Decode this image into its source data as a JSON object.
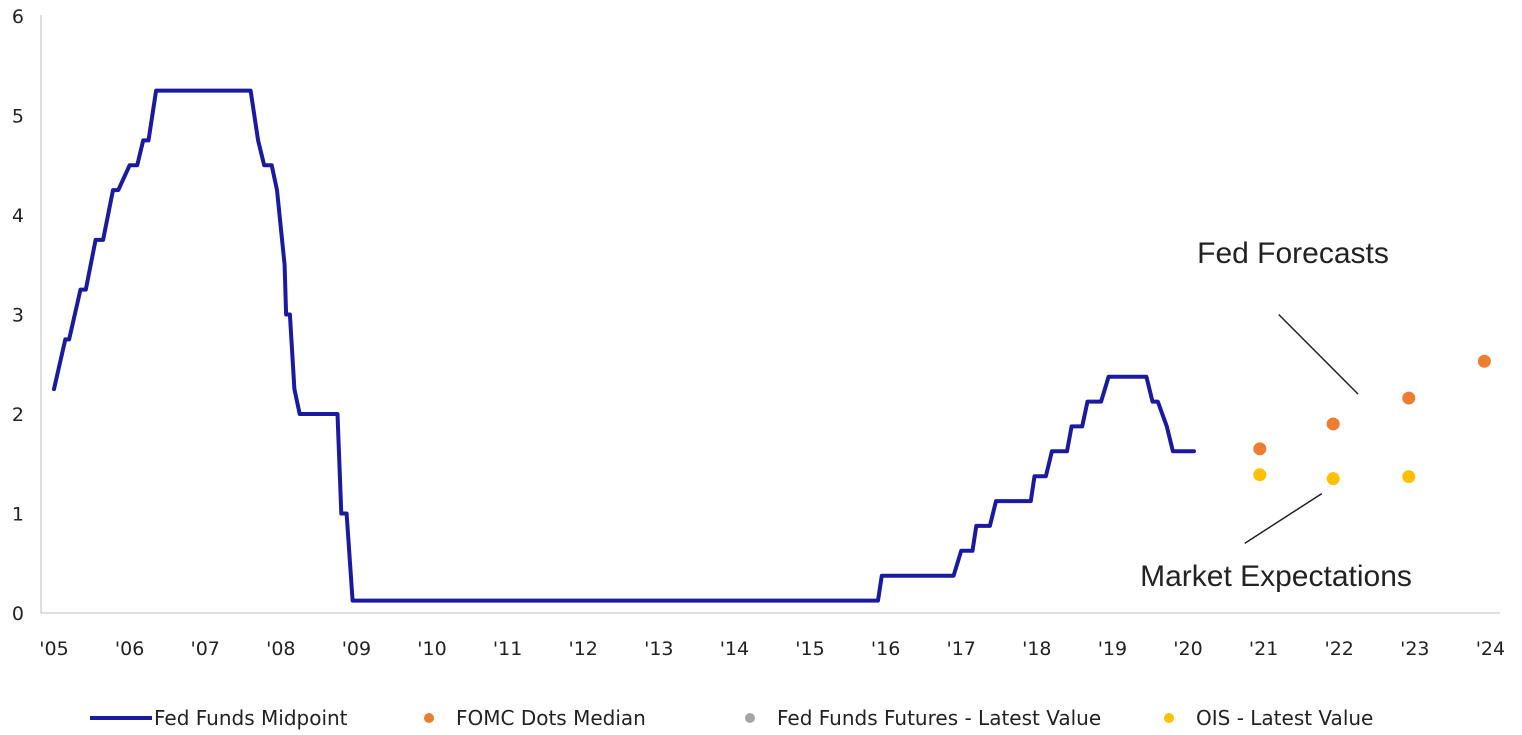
{
  "chart_data": {
    "type": "line",
    "title": "",
    "xlabel": "",
    "ylabel": "",
    "xlim": [
      2005.0,
      2024.0
    ],
    "ylim": [
      0,
      6
    ],
    "y_ticks": [
      0,
      1,
      2,
      3,
      4,
      5,
      6
    ],
    "x_ticks": [
      "'05",
      "'06",
      "'07",
      "'08",
      "'09",
      "'10",
      "'11",
      "'12",
      "'13",
      "'14",
      "'15",
      "'16",
      "'17",
      "'18",
      "'19",
      "'20",
      "'21",
      "'22",
      "'23",
      "'24"
    ],
    "grid": false,
    "legend_position": "bottom",
    "series": [
      {
        "name": "Fed Funds Midpoint",
        "kind": "line",
        "color": "#1a1aa0",
        "x": [
          2005.0,
          2005.15,
          2005.2,
          2005.35,
          2005.42,
          2005.55,
          2005.65,
          2005.78,
          2005.85,
          2006.0,
          2006.1,
          2006.18,
          2006.25,
          2006.35,
          2006.42,
          2006.55,
          2007.6,
          2007.7,
          2007.78,
          2007.88,
          2007.95,
          2008.05,
          2008.07,
          2008.12,
          2008.18,
          2008.25,
          2008.75,
          2008.8,
          2008.87,
          2008.95,
          2015.9,
          2015.95,
          2016.9,
          2017.0,
          2017.15,
          2017.2,
          2017.38,
          2017.46,
          2017.92,
          2017.97,
          2018.12,
          2018.2,
          2018.4,
          2018.46,
          2018.6,
          2018.67,
          2018.85,
          2018.95,
          2019.45,
          2019.53,
          2019.6,
          2019.72,
          2019.8,
          2020.08
        ],
        "y": [
          2.25,
          2.75,
          2.75,
          3.25,
          3.25,
          3.75,
          3.75,
          4.25,
          4.25,
          4.5,
          4.5,
          4.75,
          4.75,
          5.25,
          5.25,
          5.25,
          5.25,
          4.75,
          4.5,
          4.5,
          4.25,
          3.5,
          3.0,
          3.0,
          2.25,
          2.0,
          2.0,
          1.0,
          1.0,
          0.125,
          0.125,
          0.375,
          0.375,
          0.625,
          0.625,
          0.875,
          0.875,
          1.125,
          1.125,
          1.375,
          1.375,
          1.625,
          1.625,
          1.875,
          1.875,
          2.125,
          2.125,
          2.375,
          2.375,
          2.125,
          2.125,
          1.875,
          1.625,
          1.625
        ]
      },
      {
        "name": "FOMC Dots Median",
        "kind": "scatter",
        "color": "#ed7d31",
        "x": [
          2020.95,
          2021.92,
          2022.92,
          2023.92
        ],
        "y": [
          1.65,
          1.9,
          2.16,
          2.53
        ]
      },
      {
        "name": "Fed Funds Futures - Latest Value",
        "kind": "scatter",
        "color": "#a5a5a5",
        "x": [],
        "y": []
      },
      {
        "name": "OIS - Latest Value",
        "kind": "scatter",
        "color": "#ffc000",
        "x": [
          2020.95,
          2021.92,
          2022.92
        ],
        "y": [
          1.39,
          1.35,
          1.37
        ]
      }
    ],
    "annotations": [
      {
        "text": "Fed Forecasts",
        "pointer_from": [
          2021.2,
          3.0
        ],
        "pointer_to": [
          2022.25,
          2.2
        ]
      },
      {
        "text": "Market Expectations",
        "pointer_from": [
          2020.75,
          0.7
        ],
        "pointer_to": [
          2021.77,
          1.2
        ]
      }
    ]
  }
}
